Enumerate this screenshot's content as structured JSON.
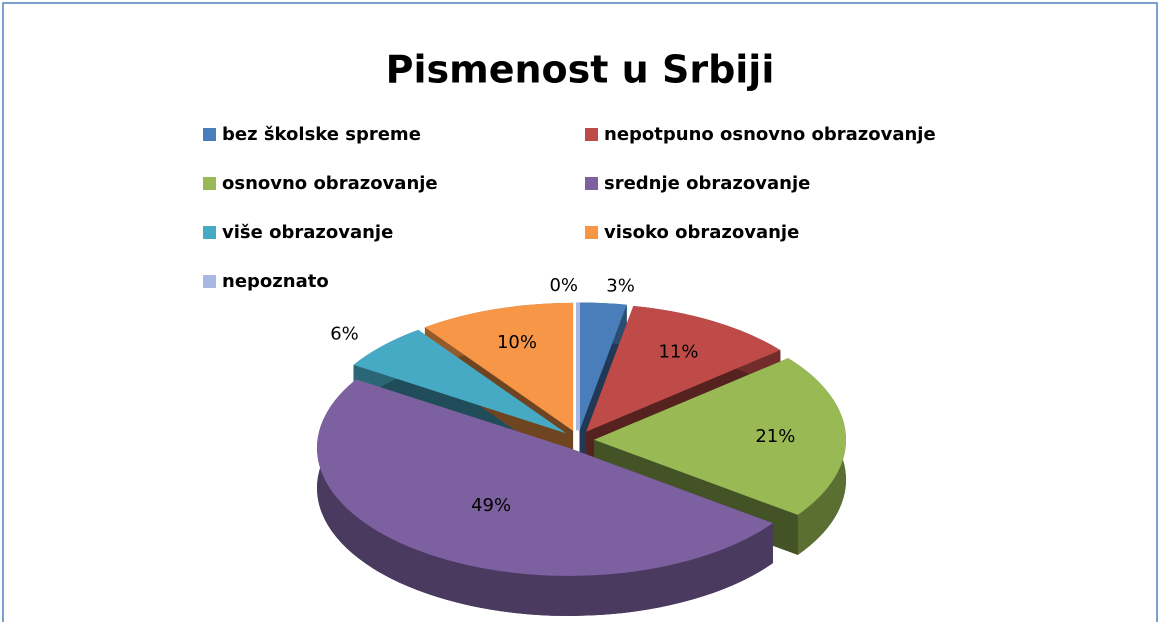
{
  "chart_data": {
    "type": "pie",
    "title": "Pismenost u Srbiji",
    "categories": [
      "bez školske spreme",
      "nepotpuno osnovno obrazovanje",
      "osnovno obrazovanje",
      "srednje obrazovanje",
      "više obrazovanje",
      "visoko obrazovanje",
      "nepoznato"
    ],
    "values": [
      3,
      11,
      21,
      49,
      6,
      10,
      0
    ],
    "value_labels": [
      "3%",
      "11%",
      "21%",
      "49%",
      "6%",
      "10%",
      "0%"
    ],
    "colors": [
      "#4a7ebb",
      "#be4b48",
      "#98b954",
      "#7d60a0",
      "#46aac5",
      "#f79646",
      "#a7b9e3"
    ],
    "legend": "top"
  }
}
